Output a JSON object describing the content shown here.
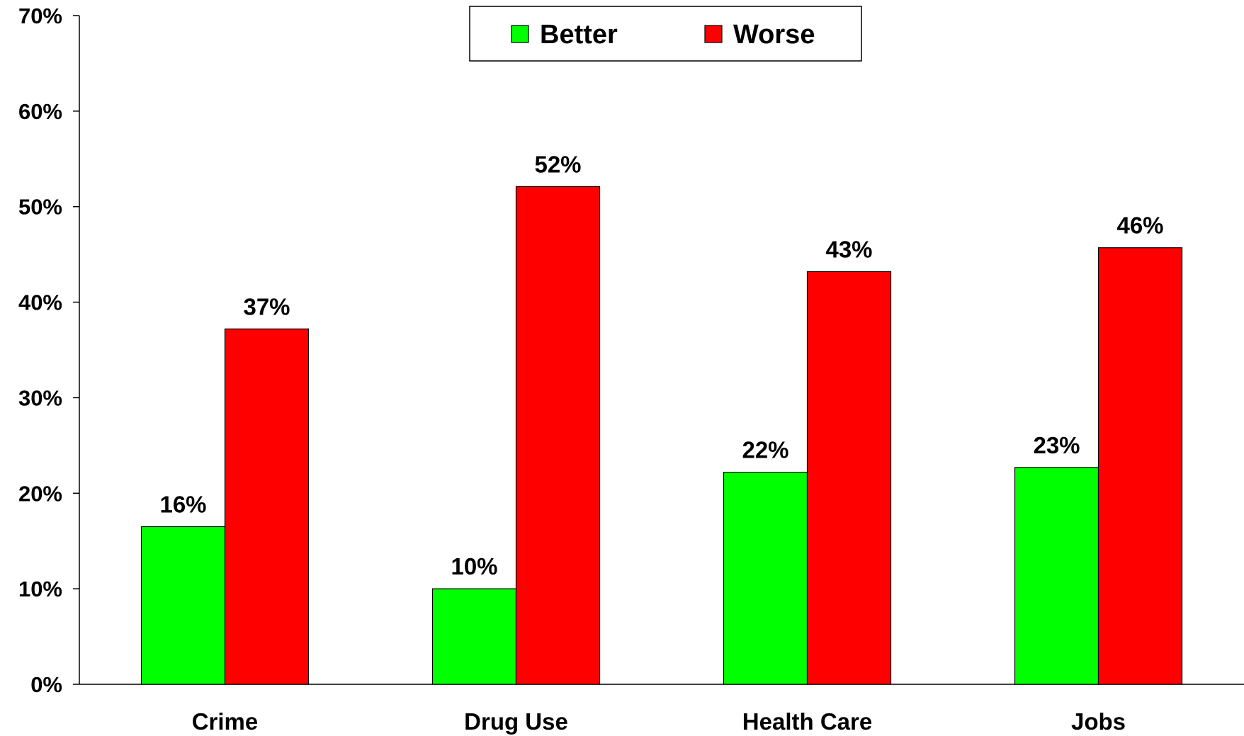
{
  "chart_data": {
    "type": "bar",
    "categories": [
      "Crime",
      "Drug Use",
      "Health Care",
      "Jobs"
    ],
    "series": [
      {
        "name": "Better",
        "color": "#00FF00",
        "values": [
          16.5,
          10,
          22.2,
          22.7
        ],
        "labels": [
          "16%",
          "10%",
          "22%",
          "23%"
        ]
      },
      {
        "name": "Worse",
        "color": "#FF0000",
        "values": [
          37.2,
          52.1,
          43.2,
          45.7
        ],
        "labels": [
          "37%",
          "52%",
          "43%",
          "46%"
        ]
      }
    ],
    "ylim": [
      0,
      70
    ],
    "yticks": [
      "0%",
      "10%",
      "20%",
      "30%",
      "40%",
      "50%",
      "60%",
      "70%"
    ],
    "xlabel": "",
    "ylabel": "",
    "title": "",
    "grid": false,
    "legend": "top-center"
  }
}
